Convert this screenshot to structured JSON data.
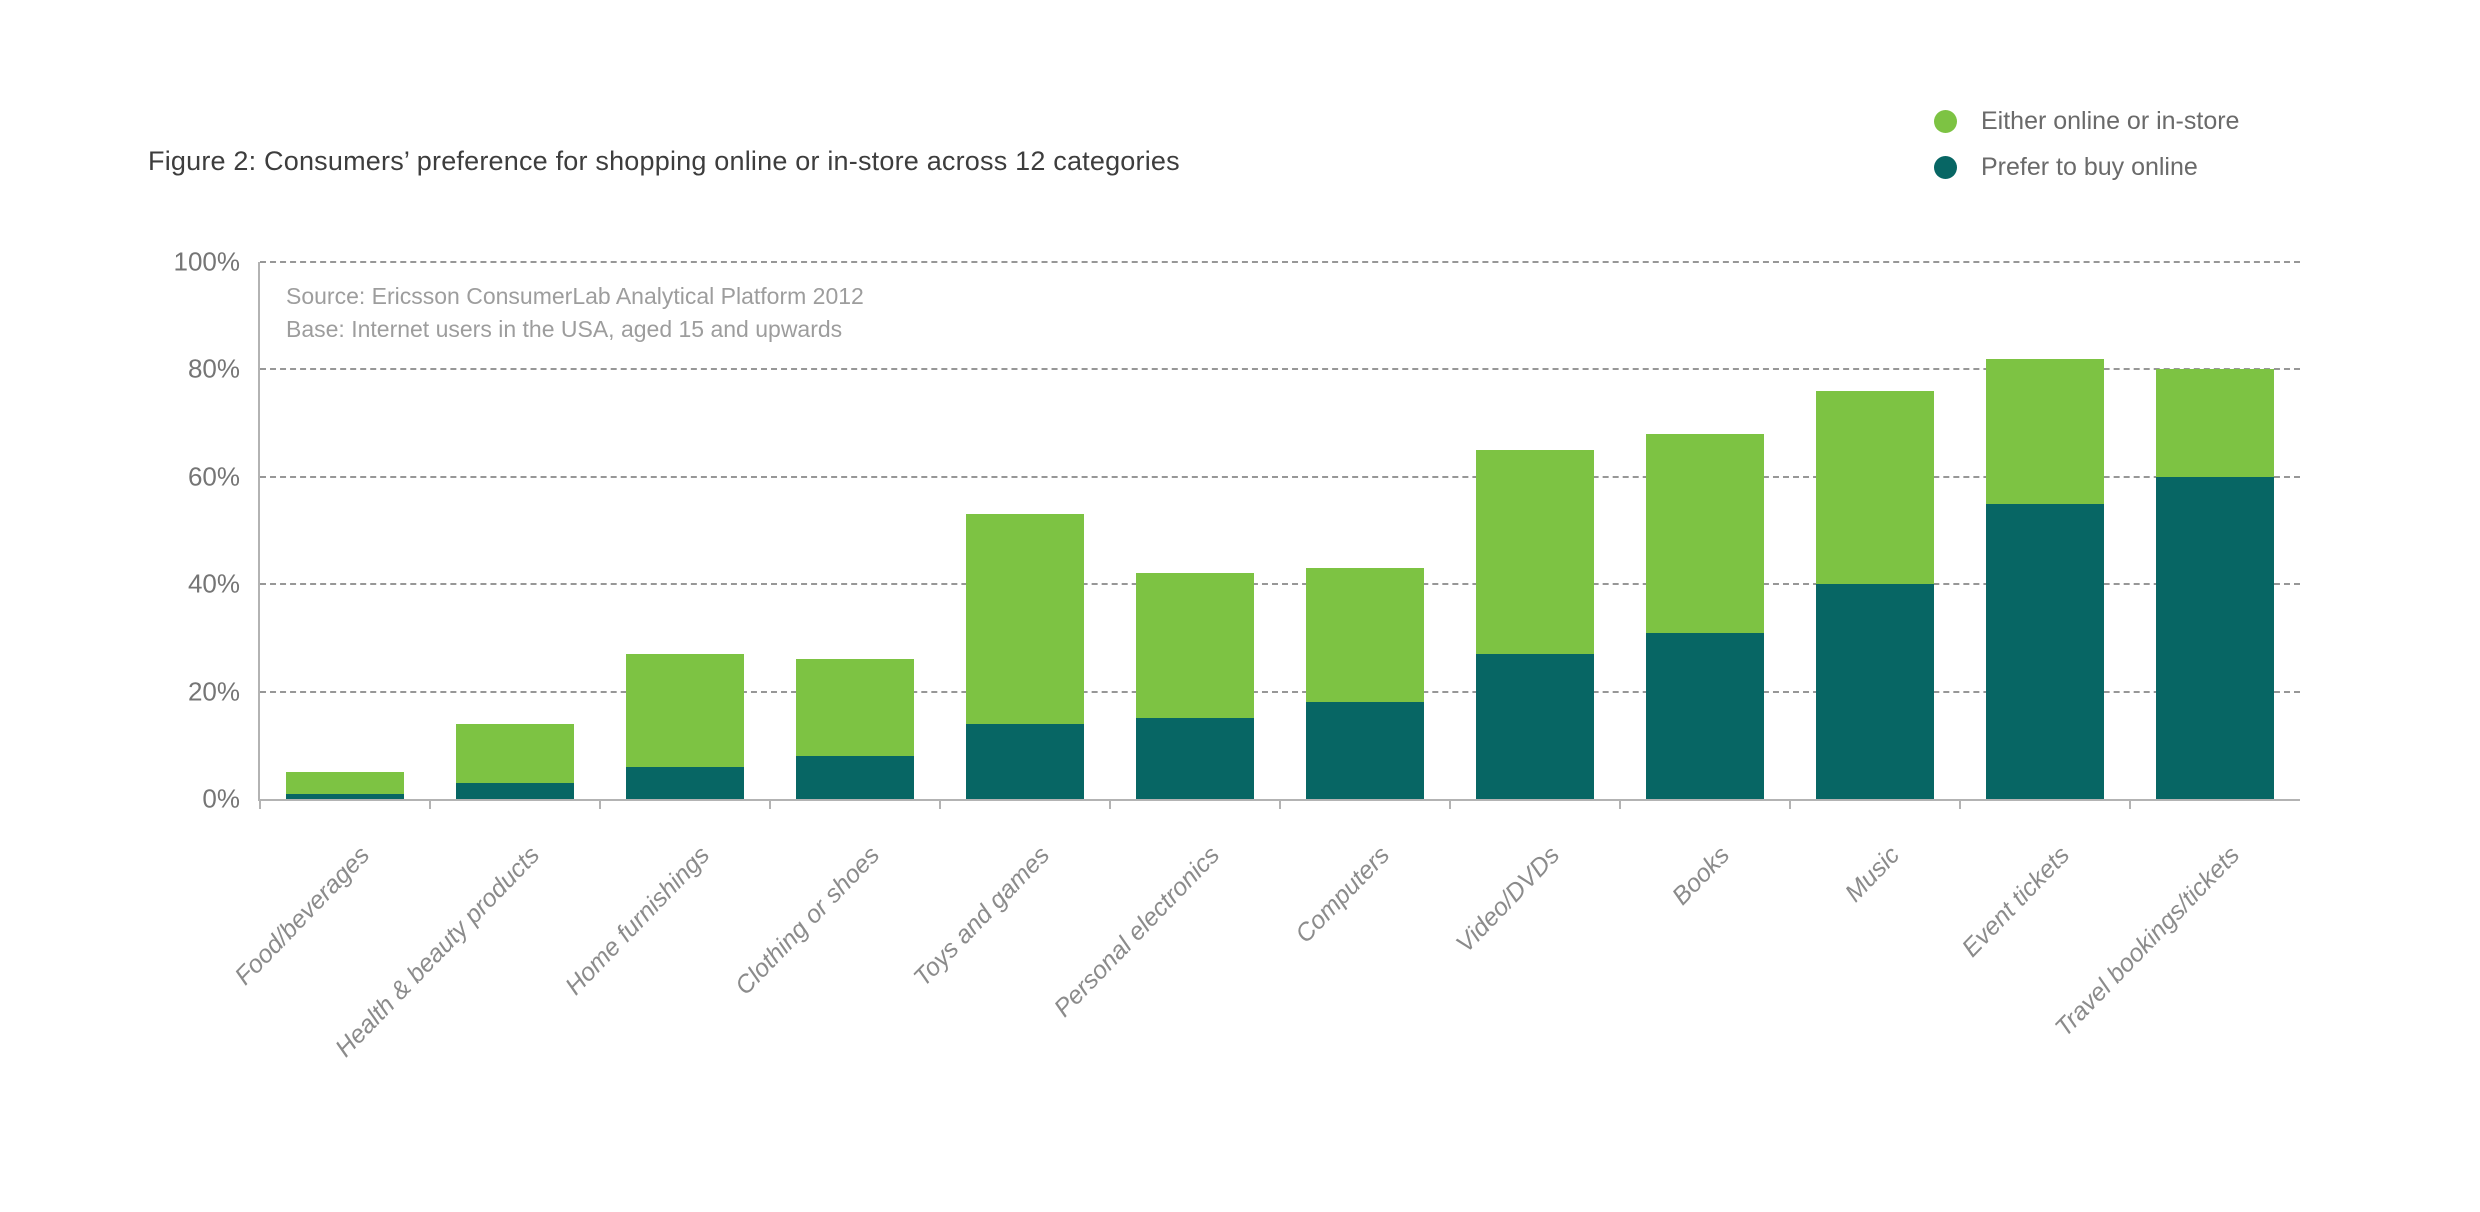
{
  "figure_title": "Figure 2: Consumers’ preference for shopping online or in-store across 12 categories",
  "legend": {
    "items": [
      {
        "label": "Either online or in-store",
        "color": "#7dc343"
      },
      {
        "label": "Prefer to buy online",
        "color": "#076664"
      }
    ]
  },
  "source_note": {
    "line1": "Source: Ericsson ConsumerLab Analytical Platform 2012",
    "line2": "Base: Internet users in the USA, aged 15 and upwards"
  },
  "chart_data": {
    "type": "bar",
    "stacked": true,
    "unit": "%",
    "title": "Figure 2: Consumers’ preference for shopping online or in-store across 12 categories",
    "categories": [
      "Food/beverages",
      "Health & beauty products",
      "Home furnishings",
      "Clothing or shoes",
      "Toys and games",
      "Personal electronics",
      "Computers",
      "Video/DVDs",
      "Books",
      "Music",
      "Event tickets",
      "Travel bookings/tickets"
    ],
    "series": [
      {
        "name": "Prefer to buy online",
        "color": "#076664",
        "values": [
          1,
          3,
          6,
          8,
          14,
          15,
          18,
          27,
          31,
          40,
          55,
          60
        ]
      },
      {
        "name": "Either online or in-store",
        "color": "#7dc343",
        "values": [
          4,
          11,
          21,
          18,
          39,
          27,
          25,
          38,
          37,
          36,
          27,
          20
        ]
      }
    ],
    "stack_totals": [
      5,
      14,
      27,
      26,
      53,
      42,
      43,
      65,
      68,
      76,
      82,
      80
    ],
    "yticks": [
      "100%",
      "80%",
      "60%",
      "40%",
      "20%",
      "0%"
    ],
    "ytick_values": [
      100,
      80,
      60,
      40,
      20,
      0
    ],
    "ylim": [
      0,
      100
    ],
    "grid": "horizontal-dashed",
    "legend_position": "top-right"
  },
  "colors": {
    "either_green": "#7dc343",
    "online_teal": "#076664",
    "axis_gray": "#b3b3b3",
    "gridline_gray": "#979797",
    "title_text": "#3d3d3d",
    "axis_label_text": "#757575",
    "category_label_text": "#8b8b8b",
    "source_text": "#9d9d9d",
    "legend_text": "#6a6a6a"
  }
}
